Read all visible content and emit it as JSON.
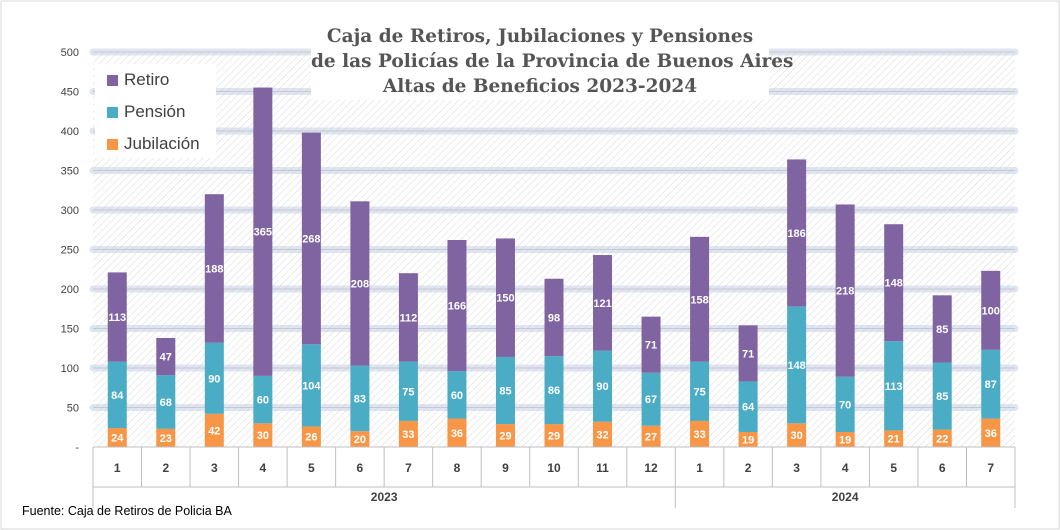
{
  "title_lines": [
    "Caja de Retiros, Jubilaciones y Pensiones",
    "de las Policías de la Provincia de Buenos Aires",
    "Altas de Beneficios 2023-2024"
  ],
  "source": "Fuente: Caja de Retiros de Policia BA",
  "legend": [
    {
      "label": "Retiro",
      "color": "#8064a2"
    },
    {
      "label": "Pensión",
      "color": "#4bacc6"
    },
    {
      "label": "Jubilación",
      "color": "#f79646"
    }
  ],
  "chart_data": {
    "type": "bar",
    "stacked": true,
    "title": "Caja de Retiros, Jubilaciones y Pensiones de las Policías de la Provincia de Buenos Aires Altas de Beneficios 2023-2024",
    "categories": [
      "1",
      "2",
      "3",
      "4",
      "5",
      "6",
      "7",
      "8",
      "9",
      "10",
      "11",
      "12",
      "1",
      "2",
      "3",
      "4",
      "5",
      "6",
      "7"
    ],
    "groups": [
      {
        "label": "2023",
        "count": 12
      },
      {
        "label": "2024",
        "count": 7
      }
    ],
    "series": [
      {
        "name": "Jubilación",
        "color": "#f79646",
        "values": [
          24,
          23,
          42,
          30,
          26,
          20,
          33,
          36,
          29,
          29,
          32,
          27,
          33,
          19,
          30,
          19,
          21,
          22,
          36
        ]
      },
      {
        "name": "Pensión",
        "color": "#4bacc6",
        "values": [
          84,
          68,
          90,
          60,
          104,
          83,
          75,
          60,
          85,
          86,
          90,
          67,
          75,
          64,
          148,
          70,
          113,
          85,
          87
        ]
      },
      {
        "name": "Retiro",
        "color": "#8064a2",
        "values": [
          113,
          47,
          188,
          365,
          268,
          208,
          112,
          166,
          150,
          98,
          121,
          71,
          158,
          71,
          186,
          218,
          148,
          85,
          100
        ]
      }
    ],
    "ylim": [
      0,
      500
    ],
    "yticks": [
      "-",
      "50",
      "100",
      "150",
      "200",
      "250",
      "300",
      "350",
      "400",
      "450",
      "500"
    ],
    "grid": true,
    "legend_position": "top-left"
  }
}
